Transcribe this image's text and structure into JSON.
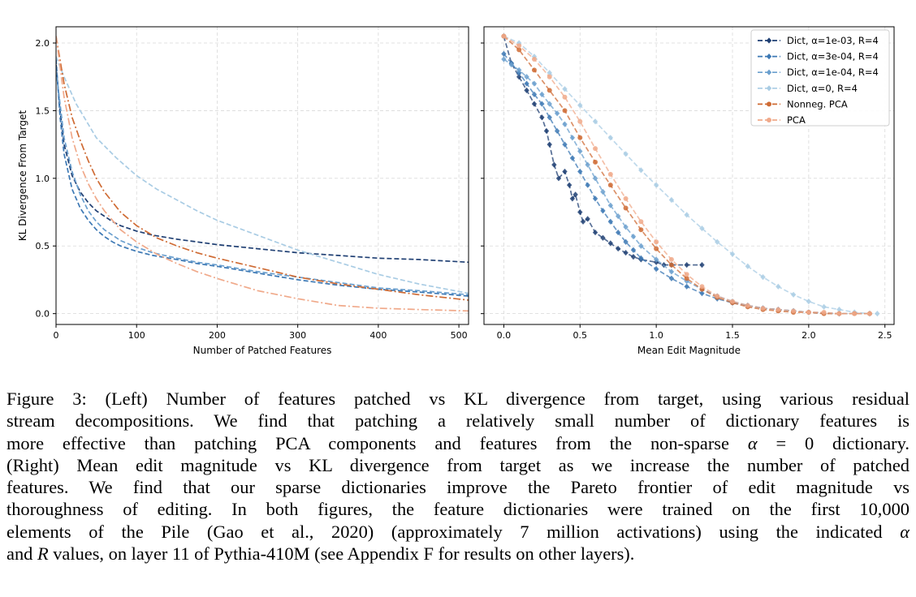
{
  "chart_data": [
    {
      "type": "line",
      "panel": "left",
      "xlabel": "Number of Patched Features",
      "ylabel": "KL Divergence From Target",
      "xlim": [
        0,
        512
      ],
      "ylim": [
        -0.08,
        2.12
      ],
      "xticks": [
        0,
        100,
        200,
        300,
        400,
        500
      ],
      "yticks": [
        0.0,
        0.5,
        1.0,
        1.5,
        2.0
      ],
      "grid": true,
      "series": [
        {
          "name": "Dict, α=1e-03, R=4",
          "color": "#1f3f73",
          "dash": "dashed",
          "x": [
            0,
            5,
            10,
            20,
            30,
            40,
            50,
            60,
            70,
            80,
            100,
            120,
            150,
            175,
            200,
            250,
            300,
            350,
            400,
            450,
            512
          ],
          "y": [
            1.84,
            1.5,
            1.25,
            1.02,
            0.9,
            0.82,
            0.76,
            0.72,
            0.68,
            0.65,
            0.61,
            0.58,
            0.55,
            0.53,
            0.51,
            0.48,
            0.45,
            0.43,
            0.41,
            0.4,
            0.38
          ]
        },
        {
          "name": "Dict, α=3e-04, R=4",
          "color": "#3c78b4",
          "dash": "dashed",
          "x": [
            0,
            5,
            10,
            20,
            30,
            40,
            50,
            60,
            70,
            80,
            100,
            120,
            150,
            175,
            200,
            250,
            300,
            350,
            400,
            450,
            512
          ],
          "y": [
            1.88,
            1.45,
            1.18,
            0.92,
            0.78,
            0.69,
            0.62,
            0.57,
            0.53,
            0.5,
            0.46,
            0.43,
            0.4,
            0.37,
            0.35,
            0.3,
            0.25,
            0.21,
            0.18,
            0.16,
            0.13
          ]
        },
        {
          "name": "Dict, α=1e-04, R=4",
          "color": "#6a9fce",
          "dash": "dashed",
          "x": [
            0,
            5,
            10,
            20,
            30,
            40,
            50,
            60,
            70,
            80,
            100,
            120,
            150,
            175,
            200,
            250,
            300,
            350,
            400,
            450,
            512
          ],
          "y": [
            1.8,
            1.55,
            1.3,
            1.05,
            0.88,
            0.76,
            0.68,
            0.62,
            0.58,
            0.54,
            0.49,
            0.45,
            0.41,
            0.38,
            0.36,
            0.31,
            0.27,
            0.23,
            0.19,
            0.17,
            0.14
          ]
        },
        {
          "name": "Dict, α=0, R=4",
          "color": "#a9cce4",
          "dash": "dashed",
          "x": [
            0,
            10,
            25,
            50,
            75,
            100,
            125,
            150,
            175,
            200,
            250,
            300,
            350,
            400,
            450,
            512
          ],
          "y": [
            1.9,
            1.75,
            1.55,
            1.3,
            1.15,
            1.02,
            0.92,
            0.84,
            0.76,
            0.69,
            0.58,
            0.47,
            0.38,
            0.29,
            0.22,
            0.15
          ]
        },
        {
          "name": "Nonneg. PCA",
          "color": "#cf6b34",
          "dash": "dashdot",
          "x": [
            0,
            10,
            20,
            30,
            40,
            50,
            60,
            80,
            100,
            125,
            150,
            175,
            200,
            250,
            300,
            350,
            400,
            450,
            512
          ],
          "y": [
            2.05,
            1.7,
            1.45,
            1.28,
            1.13,
            1.0,
            0.9,
            0.75,
            0.65,
            0.56,
            0.5,
            0.45,
            0.41,
            0.34,
            0.27,
            0.22,
            0.18,
            0.14,
            0.1
          ]
        },
        {
          "name": "PCA",
          "color": "#f0a98a",
          "dash": "dashdot",
          "x": [
            0,
            10,
            20,
            30,
            40,
            50,
            60,
            80,
            100,
            125,
            150,
            175,
            200,
            250,
            300,
            350,
            400,
            450,
            512
          ],
          "y": [
            2.05,
            1.6,
            1.3,
            1.1,
            0.96,
            0.85,
            0.76,
            0.62,
            0.53,
            0.44,
            0.37,
            0.31,
            0.26,
            0.17,
            0.11,
            0.06,
            0.04,
            0.03,
            0.02
          ]
        }
      ]
    },
    {
      "type": "line",
      "panel": "right",
      "xlabel": "Mean Edit Magnitude",
      "ylabel": "",
      "xlim": [
        -0.13,
        2.56
      ],
      "ylim": [
        -0.08,
        2.12
      ],
      "xticks": [
        0.0,
        0.5,
        1.0,
        1.5,
        2.0,
        2.5
      ],
      "yticks": [
        0.0,
        0.5,
        1.0,
        1.5,
        2.0
      ],
      "grid": true,
      "legend": "top-right",
      "series": [
        {
          "name": "Dict, α=1e-03, R=4",
          "color": "#1f3f73",
          "marker": "diamond",
          "x": [
            0.0,
            0.05,
            0.1,
            0.15,
            0.2,
            0.25,
            0.28,
            0.3,
            0.33,
            0.36,
            0.4,
            0.43,
            0.45,
            0.47,
            0.5,
            0.52,
            0.55,
            0.6,
            0.65,
            0.7,
            0.75,
            0.8,
            0.85,
            0.9,
            1.0,
            1.05,
            1.1,
            1.2,
            1.3
          ],
          "y": [
            2.05,
            1.85,
            1.75,
            1.65,
            1.55,
            1.45,
            1.35,
            1.25,
            1.1,
            1.0,
            1.05,
            0.95,
            0.85,
            0.88,
            0.75,
            0.68,
            0.7,
            0.6,
            0.56,
            0.52,
            0.48,
            0.45,
            0.42,
            0.4,
            0.38,
            0.36,
            0.36,
            0.36,
            0.36
          ]
        },
        {
          "name": "Dict, α=3e-04, R=4",
          "color": "#3c78b4",
          "marker": "diamond",
          "x": [
            0.0,
            0.05,
            0.1,
            0.15,
            0.2,
            0.25,
            0.3,
            0.35,
            0.4,
            0.45,
            0.5,
            0.55,
            0.6,
            0.65,
            0.7,
            0.75,
            0.8,
            0.85,
            0.9,
            1.0,
            1.1,
            1.2,
            1.3,
            1.4,
            1.5,
            1.6,
            1.7,
            1.8,
            1.9,
            2.0,
            2.2,
            2.4
          ],
          "y": [
            1.92,
            1.85,
            1.78,
            1.7,
            1.62,
            1.55,
            1.45,
            1.35,
            1.25,
            1.15,
            1.05,
            0.95,
            0.85,
            0.76,
            0.68,
            0.6,
            0.53,
            0.47,
            0.41,
            0.33,
            0.26,
            0.2,
            0.15,
            0.11,
            0.08,
            0.06,
            0.04,
            0.03,
            0.02,
            0.01,
            0.0,
            0.0
          ]
        },
        {
          "name": "Dict, α=1e-04, R=4",
          "color": "#6a9fce",
          "marker": "diamond",
          "x": [
            0.0,
            0.05,
            0.1,
            0.15,
            0.2,
            0.25,
            0.3,
            0.35,
            0.4,
            0.45,
            0.5,
            0.55,
            0.6,
            0.65,
            0.7,
            0.75,
            0.8,
            0.85,
            0.9,
            1.0,
            1.1,
            1.2,
            1.3,
            1.4,
            1.5,
            1.6,
            1.7,
            1.8,
            1.9,
            2.0,
            2.2,
            2.4
          ],
          "y": [
            1.88,
            1.84,
            1.8,
            1.75,
            1.7,
            1.62,
            1.55,
            1.48,
            1.4,
            1.3,
            1.2,
            1.1,
            1.0,
            0.9,
            0.8,
            0.72,
            0.64,
            0.57,
            0.5,
            0.4,
            0.31,
            0.24,
            0.18,
            0.13,
            0.09,
            0.06,
            0.04,
            0.03,
            0.02,
            0.01,
            0.0,
            0.0
          ]
        },
        {
          "name": "Dict, α=0, R=4",
          "color": "#a9cce4",
          "marker": "diamond",
          "x": [
            0.0,
            0.1,
            0.2,
            0.3,
            0.4,
            0.5,
            0.6,
            0.7,
            0.8,
            0.9,
            1.0,
            1.1,
            1.2,
            1.3,
            1.4,
            1.5,
            1.6,
            1.7,
            1.8,
            1.9,
            2.0,
            2.1,
            2.2,
            2.3,
            2.4,
            2.45
          ],
          "y": [
            2.05,
            2.0,
            1.9,
            1.78,
            1.66,
            1.54,
            1.42,
            1.3,
            1.18,
            1.06,
            0.95,
            0.84,
            0.73,
            0.63,
            0.53,
            0.44,
            0.35,
            0.27,
            0.2,
            0.14,
            0.09,
            0.05,
            0.03,
            0.01,
            0.0,
            0.0
          ]
        },
        {
          "name": "Nonneg. PCA",
          "color": "#cf6b34",
          "marker": "circle",
          "x": [
            0.0,
            0.1,
            0.2,
            0.3,
            0.4,
            0.5,
            0.6,
            0.7,
            0.8,
            0.9,
            1.0,
            1.1,
            1.2,
            1.3,
            1.4,
            1.5,
            1.6,
            1.7,
            1.8,
            1.9,
            2.0,
            2.1,
            2.2,
            2.3,
            2.4
          ],
          "y": [
            2.05,
            1.95,
            1.8,
            1.65,
            1.5,
            1.3,
            1.12,
            0.95,
            0.78,
            0.62,
            0.48,
            0.36,
            0.26,
            0.18,
            0.12,
            0.08,
            0.05,
            0.03,
            0.02,
            0.01,
            0.01,
            0.0,
            0.0,
            0.0,
            0.0
          ]
        },
        {
          "name": "PCA",
          "color": "#f0a98a",
          "marker": "circle",
          "x": [
            0.0,
            0.1,
            0.2,
            0.3,
            0.4,
            0.5,
            0.6,
            0.7,
            0.8,
            0.9,
            1.0,
            1.1,
            1.2,
            1.3,
            1.4,
            1.5,
            1.6,
            1.7,
            1.8,
            1.9,
            2.0,
            2.1,
            2.2,
            2.3,
            2.4
          ],
          "y": [
            2.05,
            1.98,
            1.88,
            1.75,
            1.6,
            1.42,
            1.22,
            1.03,
            0.85,
            0.68,
            0.53,
            0.4,
            0.29,
            0.2,
            0.13,
            0.09,
            0.06,
            0.04,
            0.03,
            0.02,
            0.01,
            0.01,
            0.0,
            0.0,
            0.0
          ]
        }
      ]
    }
  ],
  "caption": {
    "lines": [
      [
        "Figure 3: (Left) Number of features patched vs KL divergence from target, using various residual"
      ],
      [
        "stream decompositions.  We find that patching a relatively small number of dictionary features is"
      ],
      [
        "more effective than patching PCA components and features from the non-sparse ",
        "α",
        " = 0 dictionary."
      ],
      [
        "(Right) Mean edit magnitude vs KL divergence from target as we increase the number of patched"
      ],
      [
        "features.  We find that our sparse dictionaries improve the Pareto frontier of edit magnitude vs"
      ],
      [
        "thoroughness of editing.  In both figures, the feature dictionaries were trained on the first 10,000"
      ],
      [
        "elements of the Pile (Gao et al., 2020) (approximately 7 million activations) using the indicated ",
        "α"
      ],
      [
        "and ",
        "R",
        " values, on layer 11 of Pythia-410M (see Appendix F for results on other layers)."
      ]
    ]
  }
}
